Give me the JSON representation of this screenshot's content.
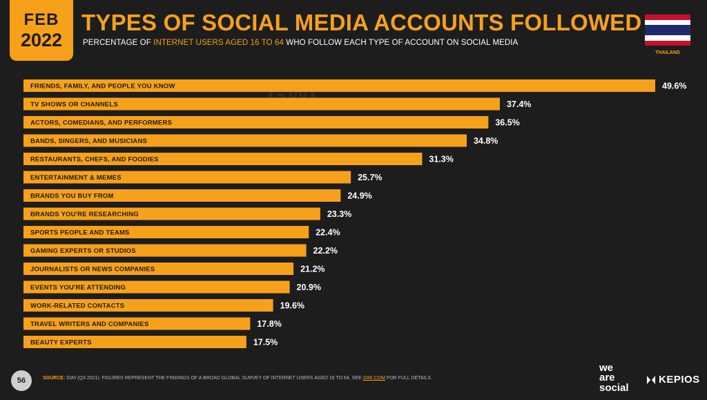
{
  "badge": {
    "month": "FEB",
    "year": "2022"
  },
  "title": "TYPES OF SOCIAL MEDIA ACCOUNTS FOLLOWED",
  "subtitle": {
    "pre": "PERCENTAGE OF ",
    "highlight1": "INTERNET USERS AGED",
    "mid": " ",
    "highlight2": "16 TO 64",
    "post": " WHO FOLLOW EACH TYPE OF ACCOUNT ON SOCIAL MEDIA"
  },
  "country": "THAILAND",
  "flag_colors": [
    "#c8102e",
    "#ffffff",
    "#1f2a6b",
    "#ffffff",
    "#c8102e"
  ],
  "watermark": "GWI.",
  "colors": {
    "accent": "#f7a11a",
    "background": "#1d1d1d"
  },
  "chart_data": {
    "type": "bar",
    "orientation": "horizontal",
    "categories": [
      "FRIENDS, FAMILY, AND PEOPLE YOU KNOW",
      "TV SHOWS OR CHANNELS",
      "ACTORS, COMEDIANS, AND PERFORMERS",
      "BANDS, SINGERS, AND MUSICIANS",
      "RESTAURANTS, CHEFS, AND FOODIES",
      "ENTERTAINMENT & MEMES",
      "BRANDS YOU BUY FROM",
      "BRANDS YOU'RE RESEARCHING",
      "SPORTS PEOPLE AND TEAMS",
      "GAMING EXPERTS OR STUDIOS",
      "JOURNALISTS OR NEWS COMPANIES",
      "EVENTS YOU'RE ATTENDING",
      "WORK-RELATED CONTACTS",
      "TRAVEL WRITERS AND COMPANIES",
      "BEAUTY EXPERTS"
    ],
    "values": [
      49.6,
      37.4,
      36.5,
      34.8,
      31.3,
      25.7,
      24.9,
      23.3,
      22.4,
      22.2,
      21.2,
      20.9,
      19.6,
      17.8,
      17.5
    ],
    "value_labels": [
      "49.6%",
      "37.4%",
      "36.5%",
      "34.8%",
      "31.3%",
      "25.7%",
      "24.9%",
      "23.3%",
      "22.4%",
      "22.2%",
      "21.2%",
      "20.9%",
      "19.6%",
      "17.8%",
      "17.5%"
    ],
    "unit": "%",
    "bar_color": "#f7a11a",
    "xlim": [
      0,
      49.6
    ],
    "grid": false,
    "legend": "none"
  },
  "footer": {
    "page_number": "56",
    "source_label": "SOURCE:",
    "source_text": " GWI (Q3 2021). FIGURES REPRESENT THE FINDINGS OF A BROAD GLOBAL SURVEY OF INTERNET USERS AGED 16 TO 64. SEE ",
    "source_link": "GWI.COM",
    "source_end": " FOR FULL DETAILS.",
    "brand1_line1": "we",
    "brand1_line2": "are",
    "brand1_line3": "social",
    "brand2": "KEPIOS"
  }
}
